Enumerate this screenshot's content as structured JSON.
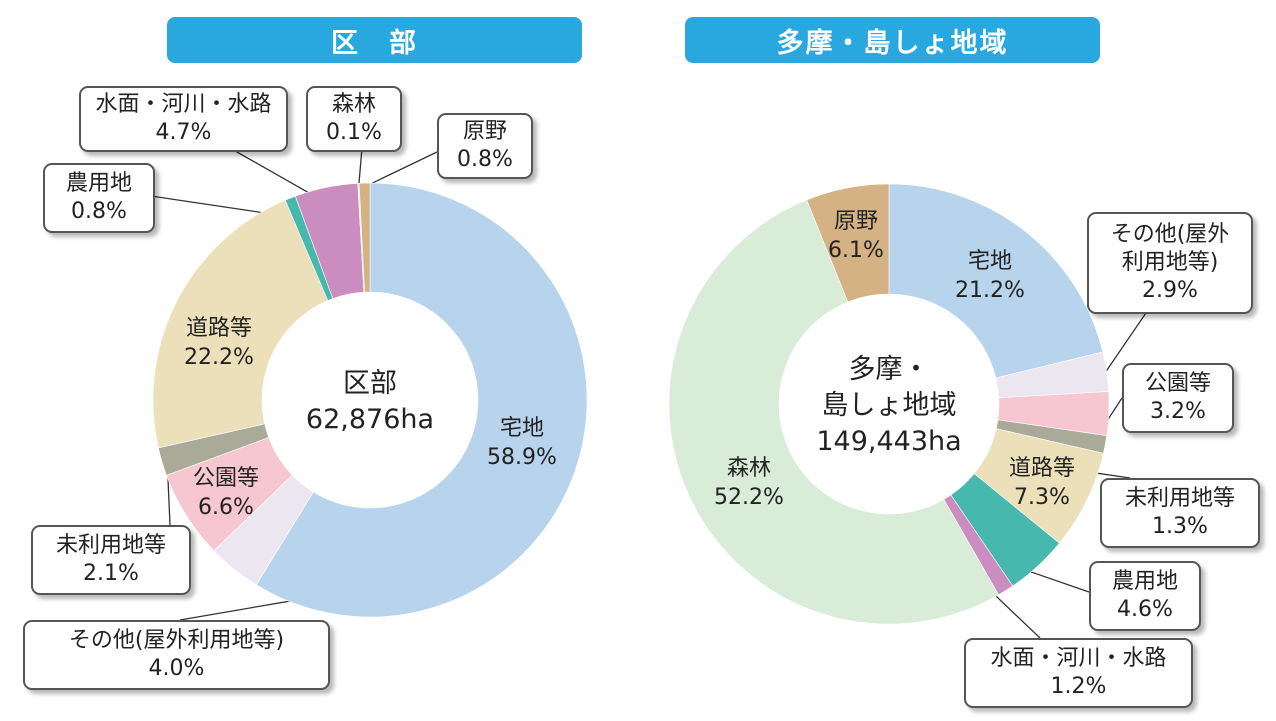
{
  "headers": {
    "ku": "区　部",
    "tama": "多摩・島しょ地域"
  },
  "chart_data": [
    {
      "type": "pie",
      "title": "区部",
      "center_label": [
        "区部",
        "62,876ha"
      ],
      "total": "62,876ha",
      "slices": [
        {
          "name": "宅地",
          "value": 58.9,
          "label": "58.9%",
          "color": "#b8d3ec"
        },
        {
          "name": "その他(屋外利用地等)",
          "value": 4.0,
          "label": "4.0%",
          "color": "#ebe6ef"
        },
        {
          "name": "公園等",
          "value": 6.6,
          "label": "6.6%",
          "color": "#f6c6d1"
        },
        {
          "name": "未利用地等",
          "value": 2.1,
          "label": "2.1%",
          "color": "#a9ab98"
        },
        {
          "name": "道路等",
          "value": 22.2,
          "label": "22.2%",
          "color": "#ebe0b9"
        },
        {
          "name": "農用地",
          "value": 0.8,
          "label": "0.8%",
          "color": "#47b8ad"
        },
        {
          "name": "水面・河川・水路",
          "value": 4.7,
          "label": "4.7%",
          "color": "#cb8cc0"
        },
        {
          "name": "森林",
          "value": 0.1,
          "label": "0.1%",
          "color": "#d8ecd8"
        },
        {
          "name": "原野",
          "value": 0.8,
          "label": "0.8%",
          "color": "#d4b283"
        }
      ]
    },
    {
      "type": "pie",
      "title": "多摩・島しょ地域",
      "center_label": [
        "多摩・",
        "島しょ地域",
        "149,443ha"
      ],
      "total": "149,443ha",
      "slices": [
        {
          "name": "宅地",
          "value": 21.2,
          "label": "21.2%",
          "color": "#b8d3ec"
        },
        {
          "name": "その他(屋外利用地等)",
          "value": 2.9,
          "label": "2.9%",
          "color": "#ebe6ef"
        },
        {
          "name": "公園等",
          "value": 3.2,
          "label": "3.2%",
          "color": "#f6c6d1"
        },
        {
          "name": "未利用地等",
          "value": 1.3,
          "label": "1.3%",
          "color": "#a9ab98"
        },
        {
          "name": "道路等",
          "value": 7.3,
          "label": "7.3%",
          "color": "#ebe0b9"
        },
        {
          "name": "農用地",
          "value": 4.6,
          "label": "4.6%",
          "color": "#47b8ad"
        },
        {
          "name": "水面・河川・水路",
          "value": 1.2,
          "label": "1.2%",
          "color": "#cb8cc0"
        },
        {
          "name": "森林",
          "value": 52.2,
          "label": "52.2%",
          "color": "#d8ecd8"
        },
        {
          "name": "原野",
          "value": 6.1,
          "label": "6.1%",
          "color": "#d4b283"
        }
      ]
    }
  ],
  "callouts": {
    "ku": {
      "water": [
        "水面・河川・水路",
        "4.7%"
      ],
      "forest": [
        "森林",
        "0.1%"
      ],
      "field": [
        "原野",
        "0.8%"
      ],
      "farm": [
        "農用地",
        "0.8%"
      ],
      "unused": [
        "未利用地等",
        "2.1%"
      ],
      "other": [
        "その他(屋外利用地等)",
        "4.0%"
      ]
    },
    "tama": {
      "other": [
        "その他(屋外",
        "利用地等)",
        "2.9%"
      ],
      "park": [
        "公園等",
        "3.2%"
      ],
      "unused": [
        "未利用地等",
        "1.3%"
      ],
      "farm": [
        "農用地",
        "4.6%"
      ],
      "water": [
        "水面・河川・水路",
        "1.2%"
      ]
    }
  },
  "inner_labels": {
    "ku": {
      "residential": [
        "宅地",
        "58.9%"
      ],
      "road": [
        "道路等",
        "22.2%"
      ],
      "park": [
        "公園等",
        "6.6%"
      ]
    },
    "tama": {
      "residential": [
        "宅地",
        "21.2%"
      ],
      "field": [
        "原野",
        "6.1%"
      ],
      "forest": [
        "森林",
        "52.2%"
      ],
      "road": [
        "道路等",
        "7.3%"
      ]
    }
  }
}
